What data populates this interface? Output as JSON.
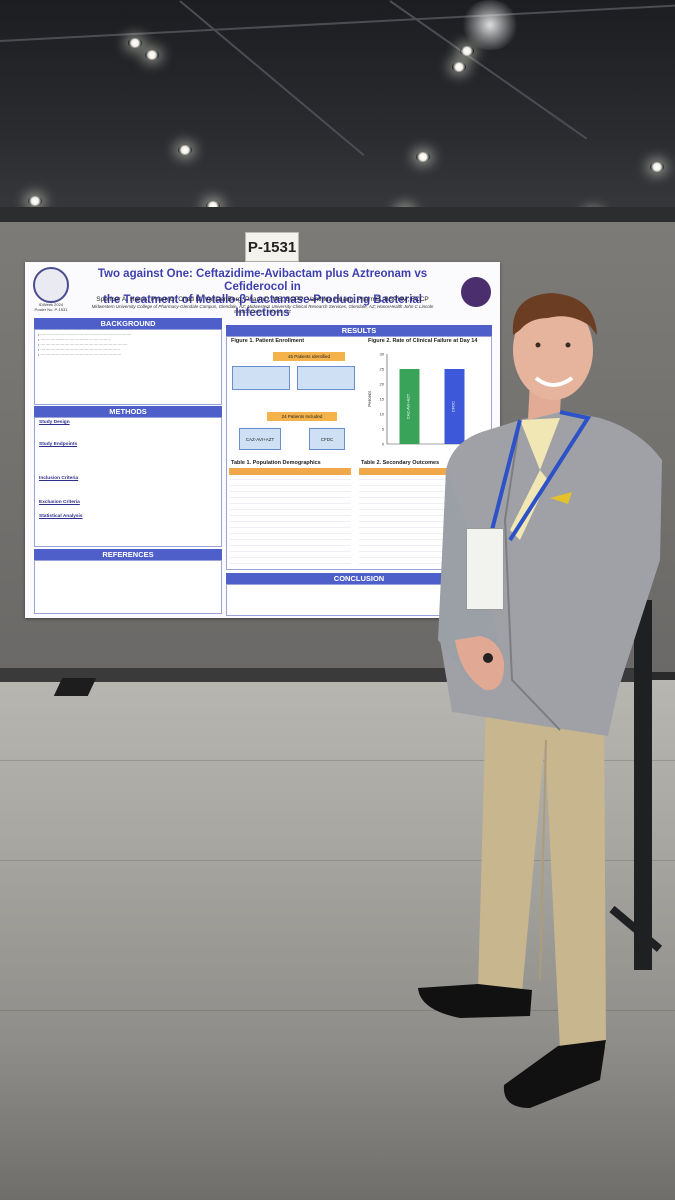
{
  "sign": {
    "number": "P-1531"
  },
  "poster": {
    "title_line1": "Two against One: Ceftazidime-Avibactam plus Aztreonam vs Cefiderocol in",
    "title_line2": "the Treatment of Metallo-β-Lactamase-Producing Bacterial Infections",
    "authors": "Spencer A. Harris, PharmD; Chad M. VanDenBerg, PharmD, MS, BCPP; Vanthida Huang, PharmD, BSPHM, FCCP",
    "affiliation": "Midwestern University College of Pharmacy-Glendale Campus, Glendale, AZ; Midwestern University Clinical Research Services, Glendale, AZ; HonorHealth John C Lincoln Medical Center, Phoenix, AZ",
    "event": "IDWeek 2024",
    "poster_no": "Poster No. P-1531",
    "sections": {
      "background": "BACKGROUND",
      "methods": "METHODS",
      "references": "REFERENCES",
      "results": "RESULTS",
      "conclusion": "CONCLUSION"
    },
    "methods_subheads": [
      "Study Design",
      "Study Endpoints",
      "Inclusion Criteria",
      "Exclusion Criteria",
      "Statistical Analysis"
    ],
    "figure1": {
      "title": "Figure 1. Patient Enrollment",
      "identified": "45 Patients Identified",
      "included": "24 Patients Included",
      "arm_a": "CAZ-AVI+AZT",
      "arm_b": "CFDC"
    },
    "figure2": {
      "title": "Figure 2. Rate of Clinical Failure at Day 14",
      "ylabel": "Percent"
    },
    "table1": "Table 1. Population Demographics",
    "table2": "Table 2. Secondary Outcomes"
  },
  "chart_data": {
    "type": "bar",
    "categories": [
      "CAZ-AVI+AZT",
      "CFDC"
    ],
    "values": [
      25,
      25
    ],
    "ylabel": "Percent",
    "ylim": [
      0,
      30
    ],
    "colors": [
      "#3aa35a",
      "#3d58d8"
    ]
  }
}
